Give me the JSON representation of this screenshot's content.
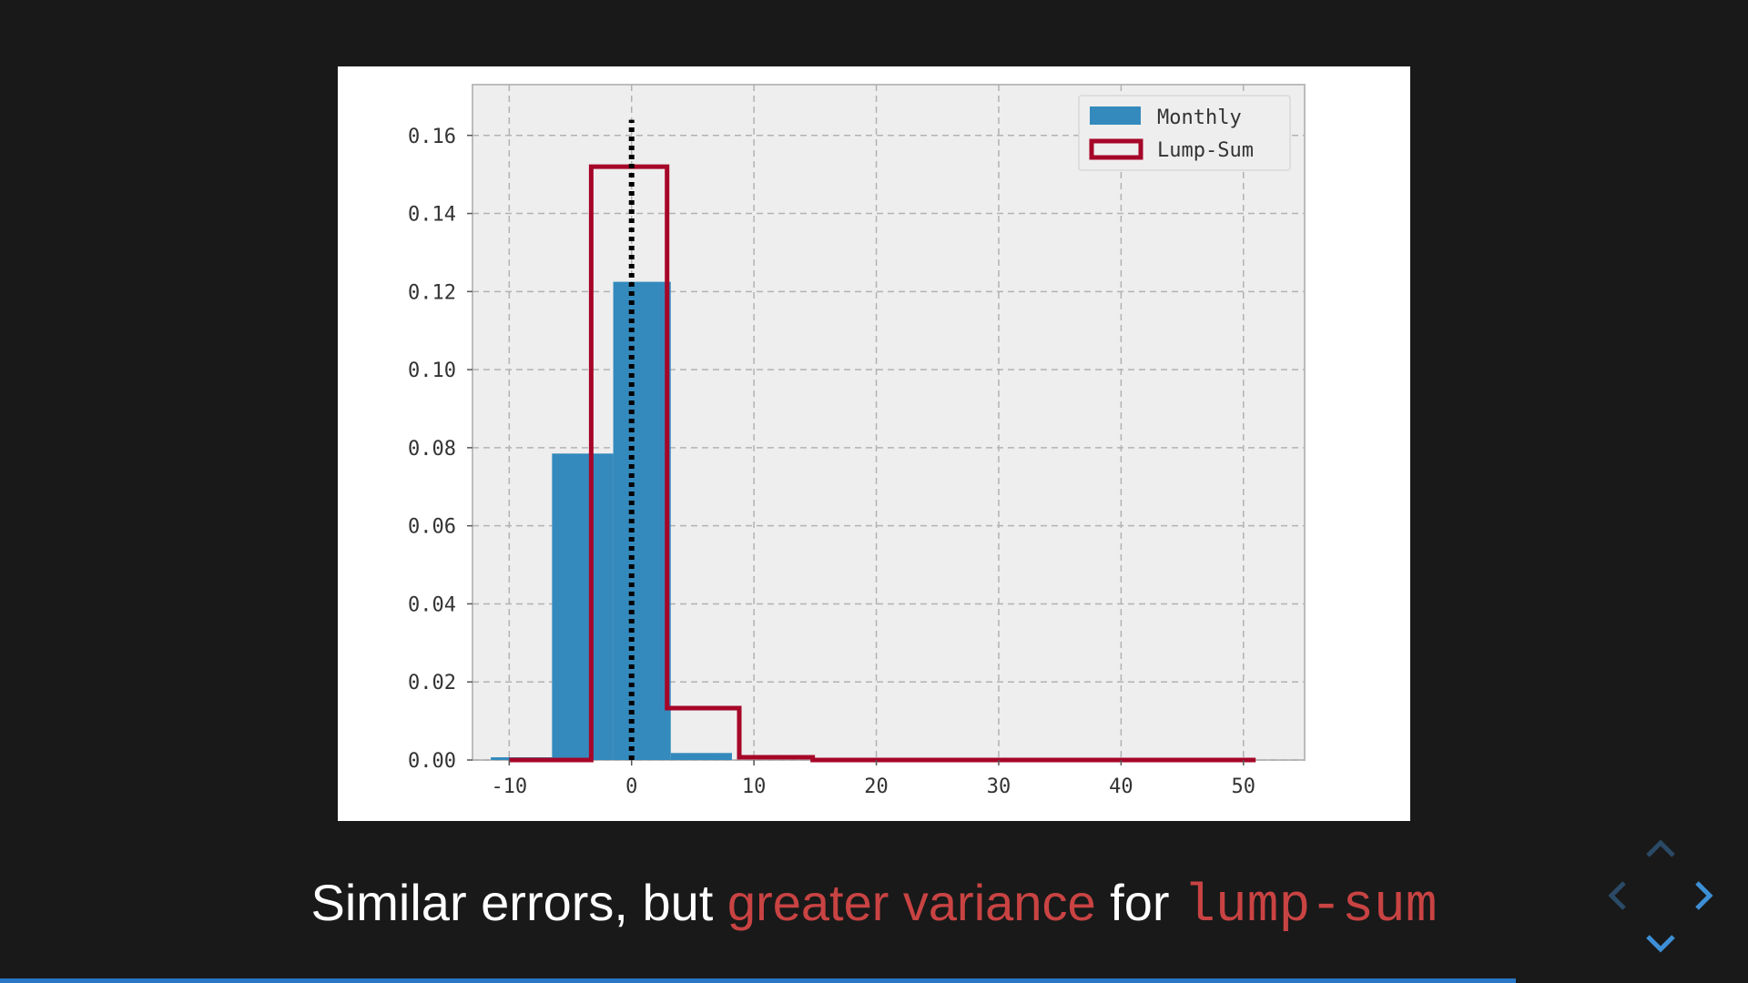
{
  "slide": {
    "caption": {
      "part1": "Similar errors, but ",
      "part2": "greater variance",
      "part3": " for ",
      "part4": "lump-sum"
    },
    "progress": 0.867
  },
  "navigation": {
    "up_icon": "chevron-up-icon",
    "down_icon": "chevron-down-icon",
    "left_icon": "chevron-left-icon",
    "right_icon": "chevron-right-icon",
    "colors": {
      "active": "#3d8fd6",
      "inactive": "#2a4a66"
    }
  },
  "colors": {
    "monthly": "#348abd",
    "lump_sum": "#a60628",
    "plot_bg": "#eeeeee",
    "grid": "#b2b2b2",
    "caption_highlight": "#c94343",
    "progress": "#2a76c6"
  },
  "chart_data": {
    "type": "histogram",
    "xlim": [
      -13,
      55
    ],
    "ylim": [
      0,
      0.173
    ],
    "xticks": [
      -10,
      0,
      10,
      20,
      30,
      40,
      50
    ],
    "xtick_labels": [
      "-10",
      "0",
      "10",
      "20",
      "30",
      "40",
      "50"
    ],
    "yticks": [
      0.0,
      0.02,
      0.04,
      0.06,
      0.08,
      0.1,
      0.12,
      0.14,
      0.16
    ],
    "ytick_labels": [
      "0.00",
      "0.02",
      "0.04",
      "0.06",
      "0.08",
      "0.10",
      "0.12",
      "0.14",
      "0.16"
    ],
    "grid": true,
    "legend_position": "top-right",
    "series": [
      {
        "name": "Monthly",
        "style": "filled",
        "bins": [
          {
            "x0": -11.5,
            "x1": -6.5,
            "value": 0.0007
          },
          {
            "x0": -6.5,
            "x1": -1.5,
            "value": 0.0785
          },
          {
            "x0": -1.5,
            "x1": 3.2,
            "value": 0.1225
          },
          {
            "x0": 3.2,
            "x1": 8.2,
            "value": 0.0018
          }
        ]
      },
      {
        "name": "Lump-Sum",
        "style": "step",
        "bins": [
          {
            "x0": -10,
            "x1": -3.3,
            "value": 0.0
          },
          {
            "x0": -3.3,
            "x1": 2.9,
            "value": 0.152
          },
          {
            "x0": 2.9,
            "x1": 8.8,
            "value": 0.0133
          },
          {
            "x0": 8.8,
            "x1": 14.8,
            "value": 0.0007
          },
          {
            "x0": 14.8,
            "x1": 51,
            "value": 0.0
          }
        ]
      }
    ],
    "vline": {
      "x": 0,
      "style": "dotted",
      "ymax": 0.164
    }
  }
}
